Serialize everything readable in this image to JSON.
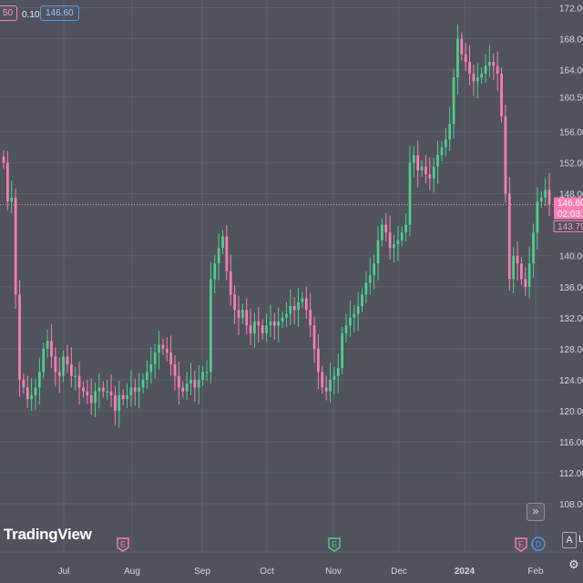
{
  "header": {
    "partial_value": "50",
    "change": "0.10",
    "ask_price": "146.60"
  },
  "logo": "TradingView",
  "scroll_icon": "double-chevron-right-icon",
  "controls": {
    "auto_label": "A",
    "log_label": "L",
    "settings_icon": "gear-icon"
  },
  "colors": {
    "background": "#50535e",
    "up": "#4ecf8f",
    "down": "#ff7eb3",
    "price_line": "#ff8fb8",
    "grid": "#5d606b"
  },
  "chart_data": {
    "type": "candlestick",
    "title": "",
    "xlabel": "",
    "ylabel": "",
    "ylim": [
      106,
      173
    ],
    "grid": true,
    "y_ticks": [
      "172.00",
      "168.00",
      "164.00",
      "160.50",
      "156.00",
      "152.00",
      "148.00",
      "140.00",
      "136.00",
      "132.00",
      "128.00",
      "124.00",
      "120.00",
      "116.00",
      "112.00",
      "108.00"
    ],
    "x_ticks": [
      "Jul",
      "Aug",
      "Sep",
      "Oct",
      "Nov",
      "Dec",
      "2024",
      "Feb"
    ],
    "price_labels": {
      "last": "146.60",
      "countdown": "02:03:1",
      "prev": "143.79"
    },
    "last_price": 146.6,
    "event_markers": [
      {
        "letter": "E",
        "color": "#ff7eb3"
      },
      {
        "letter": "E",
        "color": "#4ecf8f"
      },
      {
        "letter": "E",
        "color": "#ff7eb3"
      },
      {
        "letter": "D",
        "color": "#4a9cf5"
      }
    ],
    "closes": [
      152,
      147,
      147.5,
      135,
      124,
      123,
      121.5,
      122,
      123,
      125,
      128,
      129,
      127,
      125,
      124.5,
      127,
      126,
      124.5,
      124.5,
      123,
      122.5,
      122,
      121,
      122.5,
      123,
      122.5,
      122.5,
      122,
      120,
      122,
      121.5,
      122,
      123,
      122.5,
      123,
      124,
      125,
      126,
      127.5,
      128.5,
      128,
      127.5,
      126,
      124.5,
      123,
      122.5,
      123.5,
      124,
      123,
      124,
      125,
      125,
      137,
      139,
      141,
      142.5,
      138,
      135,
      133,
      132,
      133,
      131,
      130,
      131.5,
      131,
      130,
      131,
      131.5,
      131,
      131.5,
      132,
      132.5,
      133.5,
      133,
      134,
      134.5,
      133,
      131,
      128,
      125,
      123,
      122.5,
      124,
      124.5,
      125.5,
      130,
      131,
      132,
      132.5,
      133.5,
      135,
      136.5,
      137.5,
      139,
      142,
      144,
      143,
      141,
      141.5,
      142,
      143,
      144,
      152,
      153,
      151,
      151.5,
      150.5,
      150,
      151.5,
      153,
      154,
      155,
      157,
      163,
      168,
      166,
      165,
      163.5,
      162.5,
      163,
      163.5,
      164.5,
      165,
      164.5,
      163.5,
      158,
      148,
      137,
      140,
      139,
      137,
      136,
      139,
      143,
      147,
      147.5,
      148.5,
      146.6
    ]
  }
}
